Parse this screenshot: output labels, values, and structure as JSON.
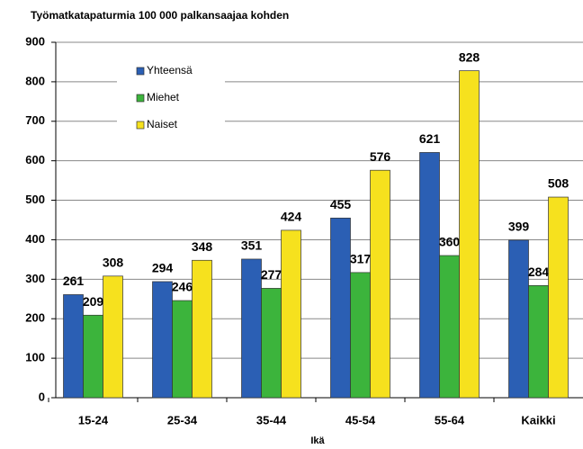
{
  "chart_data": {
    "type": "bar",
    "subtitle": "Työmatkatapaturmia 100 000 palkansaajaa kohden",
    "x_label": "Ikä",
    "categories": [
      "15-24",
      "25-34",
      "35-44",
      "45-54",
      "55-64",
      "Kaikki"
    ],
    "series": [
      {
        "name": "Yhteensä",
        "color": "#2b5fb4",
        "values": [
          261,
          294,
          351,
          455,
          621,
          399
        ]
      },
      {
        "name": "Miehet",
        "color": "#3cb43c",
        "values": [
          209,
          246,
          277,
          317,
          360,
          284
        ]
      },
      {
        "name": "Naiset",
        "color": "#f6e11e",
        "values": [
          308,
          348,
          424,
          576,
          828,
          508
        ]
      }
    ],
    "ylim": [
      0,
      900
    ],
    "yticks": [
      0,
      100,
      200,
      300,
      400,
      500,
      600,
      700,
      800,
      900
    ],
    "grid": true,
    "legend": "upper left"
  }
}
